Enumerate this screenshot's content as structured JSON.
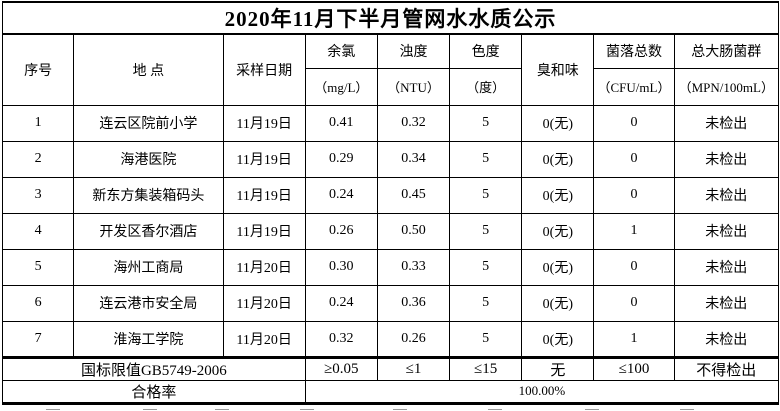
{
  "title": "2020年11月下半月管网水水质公示",
  "table": {
    "header": {
      "col_seq": "序号",
      "col_location": "地  点",
      "col_date": "采样日期",
      "params": [
        {
          "name": "余氯",
          "unit": "（mg/L）"
        },
        {
          "name": "浊度",
          "unit": "（NTU）"
        },
        {
          "name": "色度",
          "unit": "（度）"
        },
        {
          "name": "臭和味",
          "unit": ""
        },
        {
          "name": "菌落总数",
          "unit": "（CFU/mL）"
        },
        {
          "name": "总大肠菌群",
          "unit": "（MPN/100mL）"
        }
      ]
    },
    "rows": [
      {
        "seq": "1",
        "location": "连云区院前小学",
        "date": "11月19日",
        "values": [
          "0.41",
          "0.32",
          "5",
          "0(无)",
          "0",
          "未检出"
        ]
      },
      {
        "seq": "2",
        "location": "海港医院",
        "date": "11月19日",
        "values": [
          "0.29",
          "0.34",
          "5",
          "0(无)",
          "0",
          "未检出"
        ]
      },
      {
        "seq": "3",
        "location": "新东方集装箱码头",
        "date": "11月19日",
        "values": [
          "0.24",
          "0.45",
          "5",
          "0(无)",
          "0",
          "未检出"
        ]
      },
      {
        "seq": "4",
        "location": "开发区香尔酒店",
        "date": "11月19日",
        "values": [
          "0.26",
          "0.50",
          "5",
          "0(无)",
          "1",
          "未检出"
        ]
      },
      {
        "seq": "5",
        "location": "海州工商局",
        "date": "11月20日",
        "values": [
          "0.30",
          "0.33",
          "5",
          "0(无)",
          "0",
          "未检出"
        ]
      },
      {
        "seq": "6",
        "location": "连云港市安全局",
        "date": "11月20日",
        "values": [
          "0.24",
          "0.36",
          "5",
          "0(无)",
          "0",
          "未检出"
        ]
      },
      {
        "seq": "7",
        "location": "淮海工学院",
        "date": "11月20日",
        "values": [
          "0.32",
          "0.26",
          "5",
          "0(无)",
          "1",
          "未检出"
        ]
      }
    ],
    "limits": {
      "label": "国标限值GB5749-2006",
      "values": [
        "≥0.05",
        "≤1",
        "≤15",
        "无",
        "≤100",
        "不得检出"
      ]
    },
    "pass_rate": {
      "label": "合格率",
      "value": "100.00%"
    }
  },
  "colors": {
    "text": "#000000",
    "border": "#000000",
    "background": "#ffffff"
  }
}
